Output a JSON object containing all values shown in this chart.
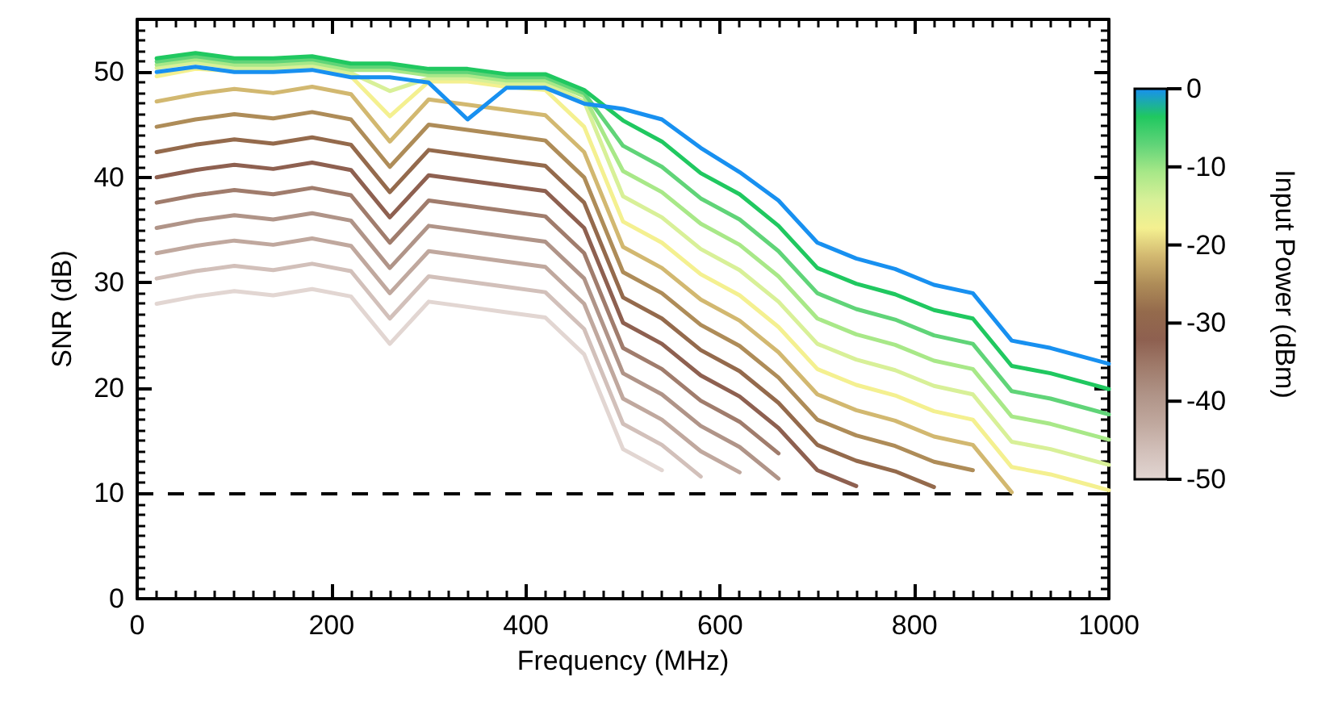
{
  "chart_data": {
    "type": "line",
    "xlabel": "Frequency (MHz)",
    "ylabel": "SNR (dB)",
    "clabel": "Input Power (dBm)",
    "clim": [
      -50,
      0
    ],
    "cticks": [
      -50,
      -40,
      -30,
      -20,
      -10,
      0
    ],
    "xlim": [
      0,
      1000
    ],
    "xticks": [
      0,
      200,
      400,
      600,
      800,
      1000
    ],
    "ylim": [
      0,
      55
    ],
    "yticks": [
      0,
      10,
      20,
      30,
      40,
      50
    ],
    "grid": false,
    "marker": "none",
    "line_style": "solid",
    "ref_lines": [
      {
        "axis": "y",
        "value": 10,
        "color": "#000000",
        "line_style": "dashed"
      }
    ],
    "x": [
      20,
      60,
      100,
      140,
      180,
      220,
      260,
      300,
      340,
      380,
      420,
      460,
      500,
      540,
      580,
      620,
      660,
      700,
      740,
      780,
      820,
      860,
      900,
      940,
      980,
      1000
    ],
    "series": [
      {
        "color": "#e2d6d2",
        "values": [
          28.0,
          28.7,
          29.2,
          28.8,
          29.4,
          28.7,
          24.2,
          28.2,
          27.7,
          27.2,
          26.7,
          23.2,
          14.2,
          12.2,
          null,
          null,
          null,
          null,
          null,
          null,
          null,
          null,
          null,
          null,
          null,
          null
        ]
      },
      {
        "color": "#d2c0ba",
        "values": [
          30.4,
          31.1,
          31.6,
          31.2,
          31.8,
          31.1,
          26.6,
          30.6,
          30.1,
          29.6,
          29.1,
          25.6,
          16.6,
          14.6,
          11.6,
          null,
          null,
          null,
          null,
          null,
          null,
          null,
          null,
          null,
          null,
          null
        ]
      },
      {
        "color": "#c0a89e",
        "values": [
          32.8,
          33.5,
          34.0,
          33.6,
          34.2,
          33.5,
          29.0,
          33.0,
          32.5,
          32.0,
          31.5,
          28.0,
          19.0,
          17.0,
          14.0,
          12.0,
          null,
          null,
          null,
          null,
          null,
          null,
          null,
          null,
          null,
          null
        ]
      },
      {
        "color": "#b09488",
        "values": [
          35.2,
          35.9,
          36.4,
          36.0,
          36.6,
          35.9,
          31.4,
          35.4,
          34.9,
          34.4,
          33.9,
          30.4,
          21.4,
          19.4,
          16.4,
          14.4,
          11.4,
          null,
          null,
          null,
          null,
          null,
          null,
          null,
          null,
          null
        ]
      },
      {
        "color": "#a07c6c",
        "values": [
          37.6,
          38.3,
          38.8,
          38.4,
          39.0,
          38.3,
          33.8,
          37.8,
          37.3,
          36.8,
          36.3,
          32.8,
          23.8,
          21.8,
          18.8,
          16.8,
          13.8,
          null,
          null,
          null,
          null,
          null,
          null,
          null,
          null,
          null
        ]
      },
      {
        "color": "#8e6050",
        "values": [
          40.0,
          40.7,
          41.2,
          40.8,
          41.4,
          40.7,
          36.2,
          40.2,
          39.7,
          39.2,
          38.7,
          35.2,
          26.2,
          24.2,
          21.2,
          19.2,
          16.2,
          12.2,
          10.7,
          null,
          null,
          null,
          null,
          null,
          null,
          null
        ]
      },
      {
        "color": "#946a4c",
        "values": [
          42.4,
          43.1,
          43.6,
          43.2,
          43.8,
          43.1,
          38.6,
          42.6,
          42.1,
          41.6,
          41.1,
          37.6,
          28.6,
          26.6,
          23.6,
          21.6,
          18.6,
          14.6,
          13.1,
          12.1,
          10.6,
          null,
          null,
          null,
          null,
          null
        ]
      },
      {
        "color": "#ae8c58",
        "values": [
          44.8,
          45.5,
          46.0,
          45.6,
          46.2,
          45.5,
          41.0,
          45.0,
          44.5,
          44.0,
          43.5,
          40.0,
          31.0,
          29.0,
          26.0,
          24.0,
          21.0,
          17.0,
          15.5,
          14.5,
          13.0,
          12.2,
          null,
          null,
          null,
          null
        ]
      },
      {
        "color": "#d2b870",
        "values": [
          47.2,
          47.9,
          48.4,
          48.0,
          48.6,
          47.9,
          43.4,
          47.4,
          46.9,
          46.4,
          45.9,
          42.4,
          33.4,
          31.4,
          28.4,
          26.4,
          23.4,
          19.4,
          17.9,
          16.9,
          15.4,
          14.6,
          10.1,
          null,
          null,
          null
        ]
      },
      {
        "color": "#f4f090",
        "values": [
          49.6,
          50.3,
          50.1,
          50.1,
          50.3,
          49.6,
          45.8,
          49.1,
          49.1,
          48.6,
          48.3,
          44.8,
          35.8,
          33.8,
          30.8,
          28.8,
          25.8,
          21.8,
          20.3,
          19.3,
          17.8,
          17.0,
          12.5,
          11.8,
          10.8,
          10.3
        ]
      },
      {
        "color": "#d8f098",
        "values": [
          50.4,
          50.9,
          50.4,
          50.4,
          50.6,
          49.9,
          48.2,
          49.4,
          49.4,
          48.9,
          48.9,
          47.2,
          38.2,
          36.2,
          33.2,
          31.2,
          28.2,
          24.2,
          22.7,
          21.7,
          20.2,
          19.4,
          14.9,
          14.2,
          13.2,
          12.7
        ]
      },
      {
        "color": "#a8e888",
        "values": [
          50.7,
          51.2,
          50.7,
          50.7,
          50.9,
          50.2,
          50.2,
          49.7,
          49.7,
          49.2,
          49.2,
          47.7,
          40.6,
          38.6,
          35.6,
          33.6,
          30.6,
          26.6,
          25.1,
          24.1,
          22.6,
          21.8,
          17.3,
          16.6,
          15.6,
          15.1
        ]
      },
      {
        "color": "#60d478",
        "values": [
          51.0,
          51.5,
          51.0,
          51.0,
          51.2,
          50.5,
          50.5,
          50.0,
          50.0,
          49.5,
          49.5,
          48.0,
          43.0,
          41.0,
          38.0,
          36.0,
          33.0,
          29.0,
          27.5,
          26.5,
          25.0,
          24.2,
          19.7,
          19.0,
          18.0,
          17.5
        ]
      },
      {
        "color": "#20c860",
        "values": [
          51.3,
          51.8,
          51.3,
          51.3,
          51.5,
          50.8,
          50.8,
          50.3,
          50.3,
          49.8,
          49.8,
          48.3,
          45.4,
          43.4,
          40.4,
          38.4,
          35.4,
          31.4,
          29.9,
          28.9,
          27.4,
          26.6,
          22.1,
          21.4,
          20.4,
          19.9
        ]
      },
      {
        "color": "#1890f0",
        "values": [
          50.0,
          50.5,
          50.0,
          50.0,
          50.2,
          49.5,
          49.5,
          49.0,
          45.5,
          48.5,
          48.5,
          47.0,
          46.5,
          45.5,
          42.8,
          40.5,
          37.8,
          33.8,
          32.3,
          31.3,
          29.8,
          29.0,
          24.5,
          23.8,
          22.8,
          22.3
        ]
      }
    ]
  }
}
